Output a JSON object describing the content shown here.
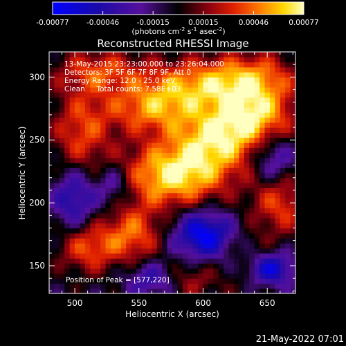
{
  "chart_data": {
    "type": "heatmap",
    "title": "Reconstructed RHESSI Image",
    "xlabel": "Heliocentric X (arcsec)",
    "ylabel": "Heliocentric Y (arcsec)",
    "xlim": [
      480,
      672
    ],
    "ylim": [
      128,
      320
    ],
    "x_ticks": [
      500,
      550,
      600,
      650
    ],
    "y_ticks": [
      150,
      200,
      250,
      300
    ],
    "colorbar": {
      "ticks": [
        "-0.00077",
        "-0.00046",
        "-0.00015",
        "0.00015",
        "0.00046",
        "0.00077"
      ],
      "unit_main": "(photons cm",
      "unit_sup1": "-2",
      "unit_mid": " s",
      "unit_sup2": "-1",
      "unit_mid2": " asec",
      "unit_sup3": "-2",
      "unit_end": ")",
      "range": [
        -0.00077,
        0.00077
      ]
    },
    "annotations": [
      "13-May-2015 23:23:00.000 to 23:26:04.000",
      "Detectors: 3F 5F 6F 7F 8F 9F, Att 0",
      "Energy Range: 12.0 - 25.0 keV",
      "Clean     Total counts: 7.58E+03"
    ],
    "peak_label": "Position of Peak = [577,220]",
    "peak": [
      577,
      220
    ],
    "blobs": [
      {
        "x": 577,
        "y": 222,
        "amp": 0.00075,
        "sx": 28,
        "sy": 18
      },
      {
        "x": 610,
        "y": 250,
        "amp": 0.0006,
        "sx": 24,
        "sy": 18
      },
      {
        "x": 640,
        "y": 270,
        "amp": 0.00062,
        "sx": 22,
        "sy": 16
      },
      {
        "x": 560,
        "y": 275,
        "amp": 0.00052,
        "sx": 26,
        "sy": 14
      },
      {
        "x": 505,
        "y": 255,
        "amp": 0.00042,
        "sx": 16,
        "sy": 26
      },
      {
        "x": 595,
        "y": 295,
        "amp": 0.0005,
        "sx": 30,
        "sy": 14
      },
      {
        "x": 640,
        "y": 300,
        "amp": 0.00045,
        "sx": 24,
        "sy": 14
      },
      {
        "x": 520,
        "y": 305,
        "amp": 0.0004,
        "sx": 24,
        "sy": 12
      },
      {
        "x": 545,
        "y": 175,
        "amp": 0.00048,
        "sx": 16,
        "sy": 16
      },
      {
        "x": 510,
        "y": 165,
        "amp": 0.00045,
        "sx": 16,
        "sy": 14
      },
      {
        "x": 660,
        "y": 200,
        "amp": 0.00042,
        "sx": 16,
        "sy": 18
      },
      {
        "x": 640,
        "y": 150,
        "amp": 0.00035,
        "sx": 14,
        "sy": 14
      },
      {
        "x": 590,
        "y": 140,
        "amp": 0.00028,
        "sx": 16,
        "sy": 12
      },
      {
        "x": 600,
        "y": 175,
        "amp": -0.0007,
        "sx": 16,
        "sy": 14
      },
      {
        "x": 650,
        "y": 148,
        "amp": -0.0008,
        "sx": 14,
        "sy": 10
      },
      {
        "x": 500,
        "y": 205,
        "amp": -0.0005,
        "sx": 12,
        "sy": 18
      },
      {
        "x": 530,
        "y": 215,
        "amp": -0.00035,
        "sx": 10,
        "sy": 12
      },
      {
        "x": 560,
        "y": 140,
        "amp": -0.0004,
        "sx": 14,
        "sy": 10
      },
      {
        "x": 655,
        "y": 235,
        "amp": -0.0004,
        "sx": 12,
        "sy": 14
      }
    ],
    "background": -5e-05
  },
  "footer": {
    "timestamp": "21-May-2022 07:01"
  }
}
